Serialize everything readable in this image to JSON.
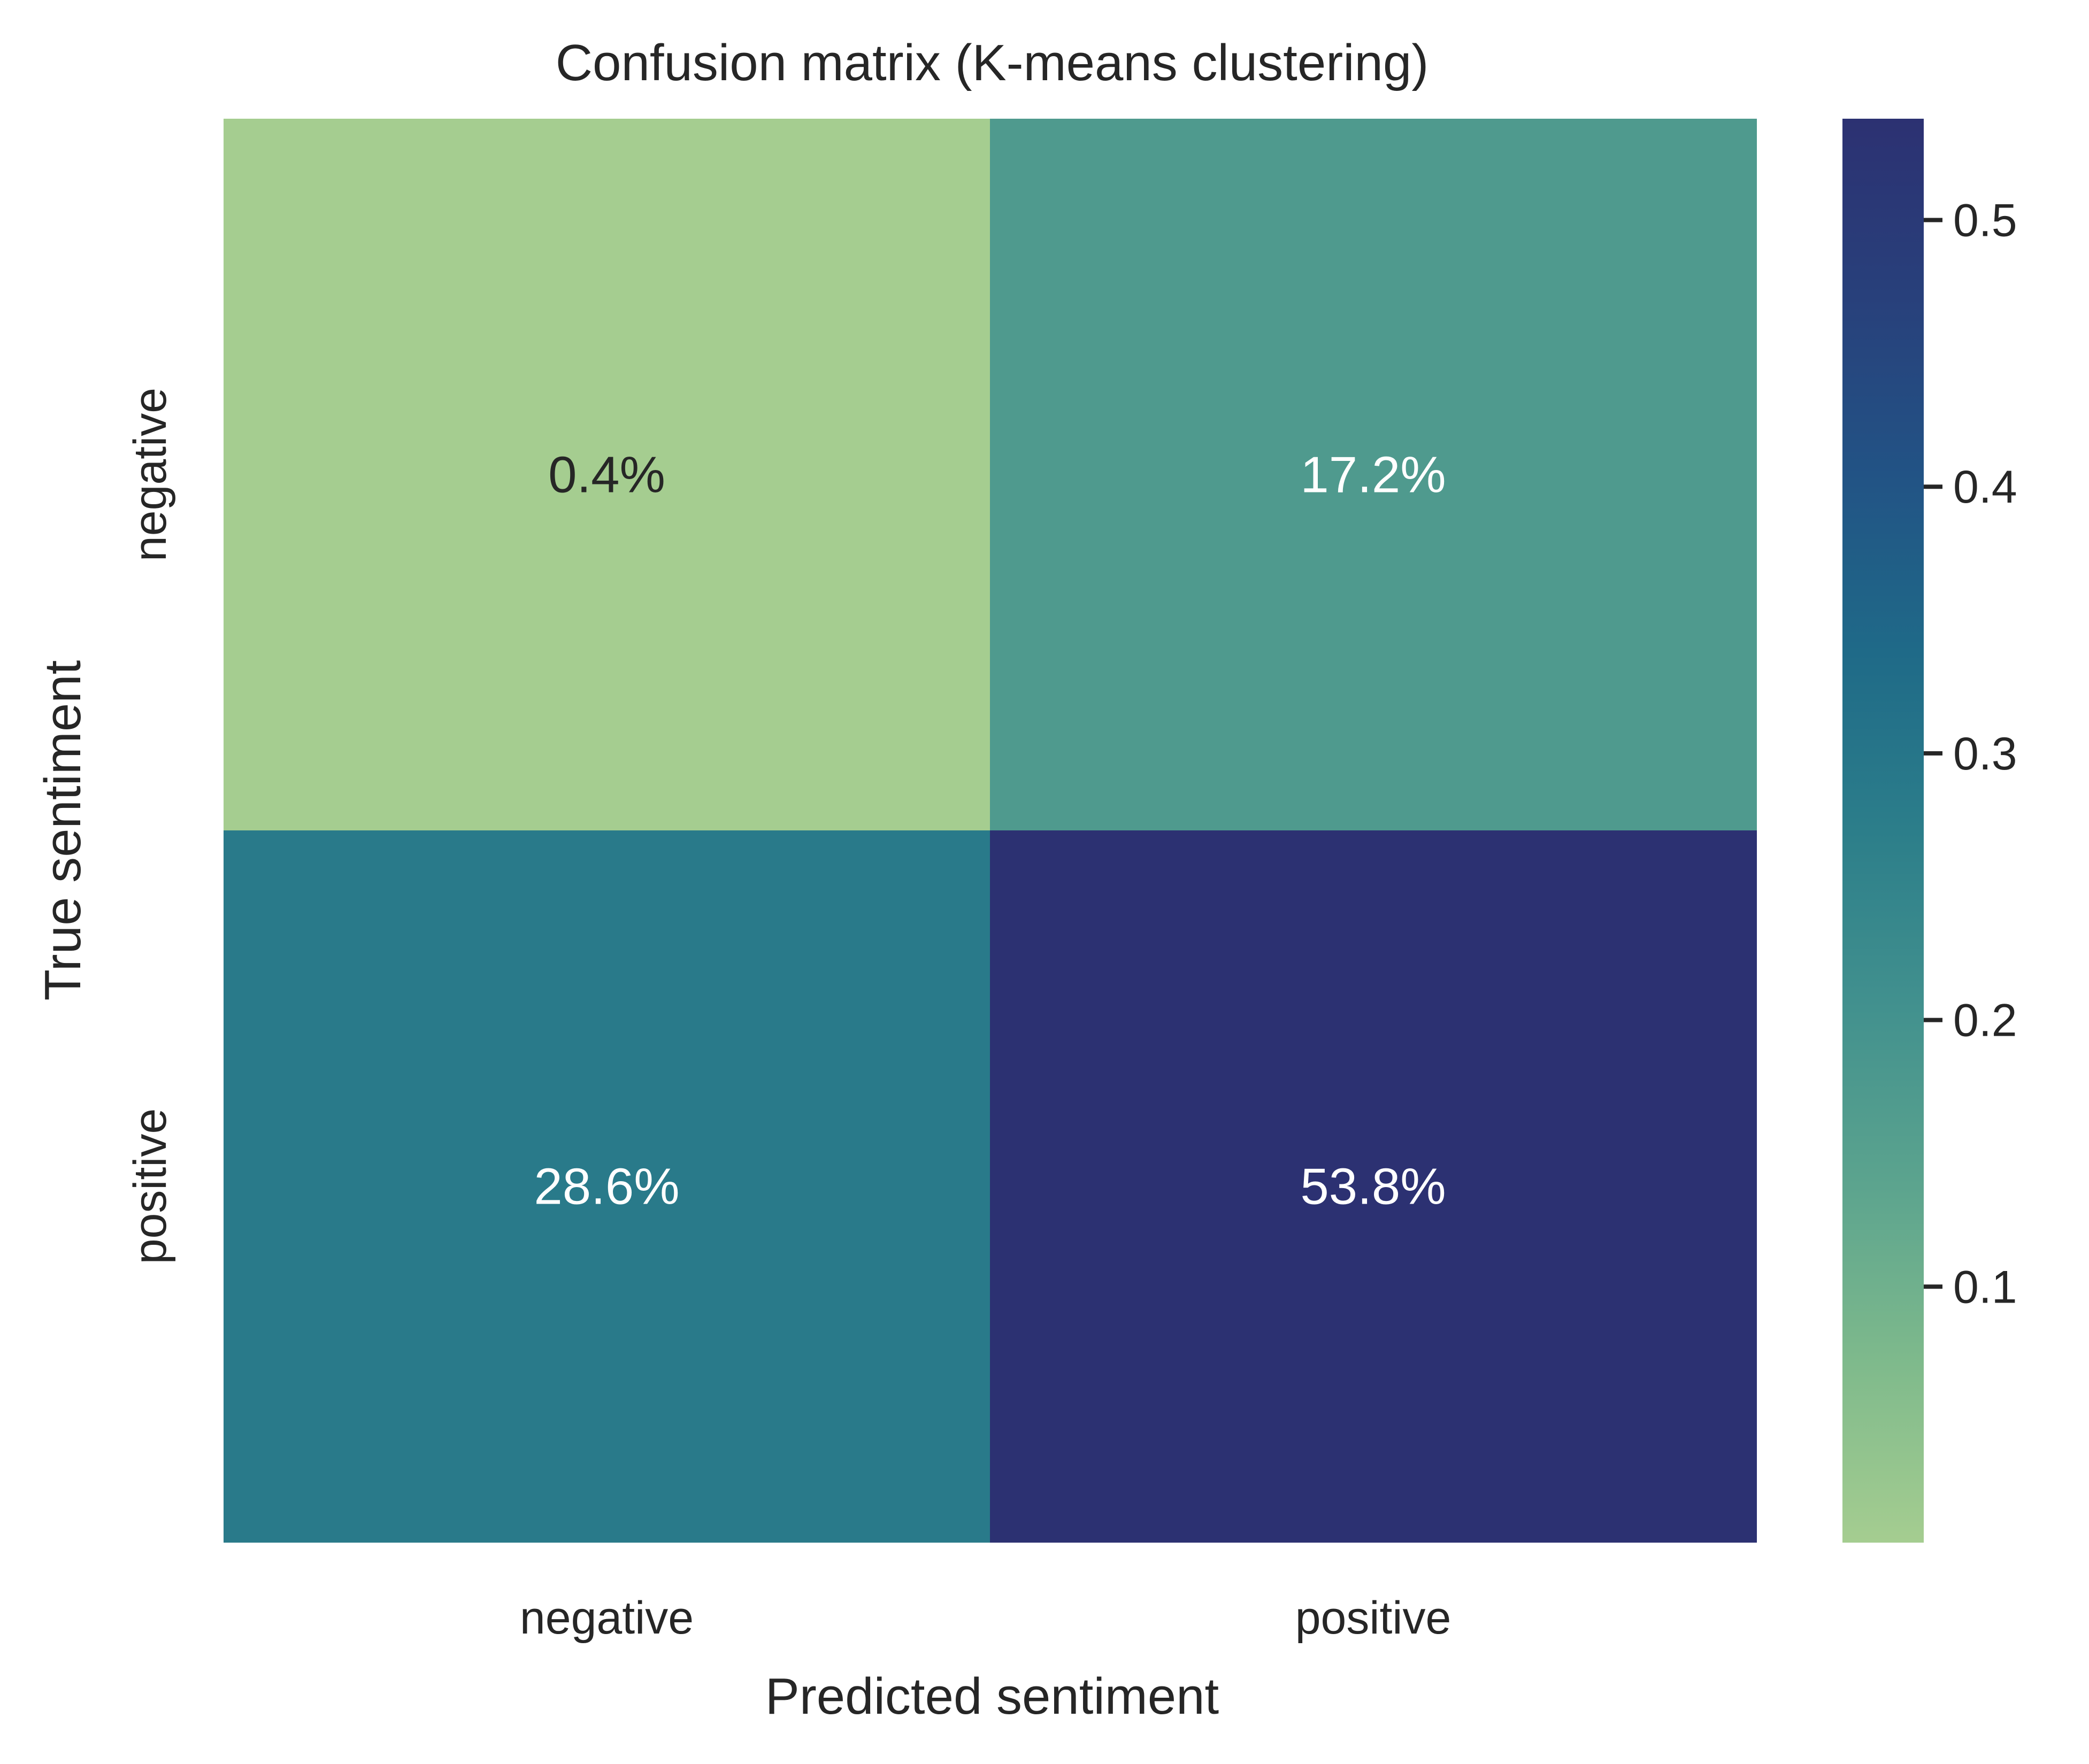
{
  "chart_data": {
    "type": "heatmap",
    "title": "Confusion matrix (K-means clustering)",
    "xlabel": "Predicted sentiment",
    "ylabel": "True sentiment",
    "x_categories": [
      "negative",
      "positive"
    ],
    "y_categories": [
      "negative",
      "positive"
    ],
    "values": [
      [
        0.004,
        0.172
      ],
      [
        0.286,
        0.538
      ]
    ],
    "annotations": [
      [
        "0.4%",
        "17.2%"
      ],
      [
        "28.6%",
        "53.8%"
      ]
    ],
    "colorbar": {
      "range": [
        0.004,
        0.538
      ],
      "ticks": [
        0.1,
        0.2,
        0.3,
        0.4,
        0.5
      ],
      "tick_labels": [
        "0.1",
        "0.2",
        "0.3",
        "0.4",
        "0.5"
      ]
    },
    "colormap": "crest",
    "colormap_stops": [
      "#a5cd90",
      "#7fba8c",
      "#5ca48e",
      "#42918e",
      "#2c7e8a",
      "#1f6a88",
      "#225385",
      "#28407b",
      "#2c3172"
    ],
    "annotation_text_colors": {
      "light_cell": "#262626",
      "dark_cell": "#ffffff"
    },
    "grid": false,
    "legend": "colorbar-right"
  }
}
